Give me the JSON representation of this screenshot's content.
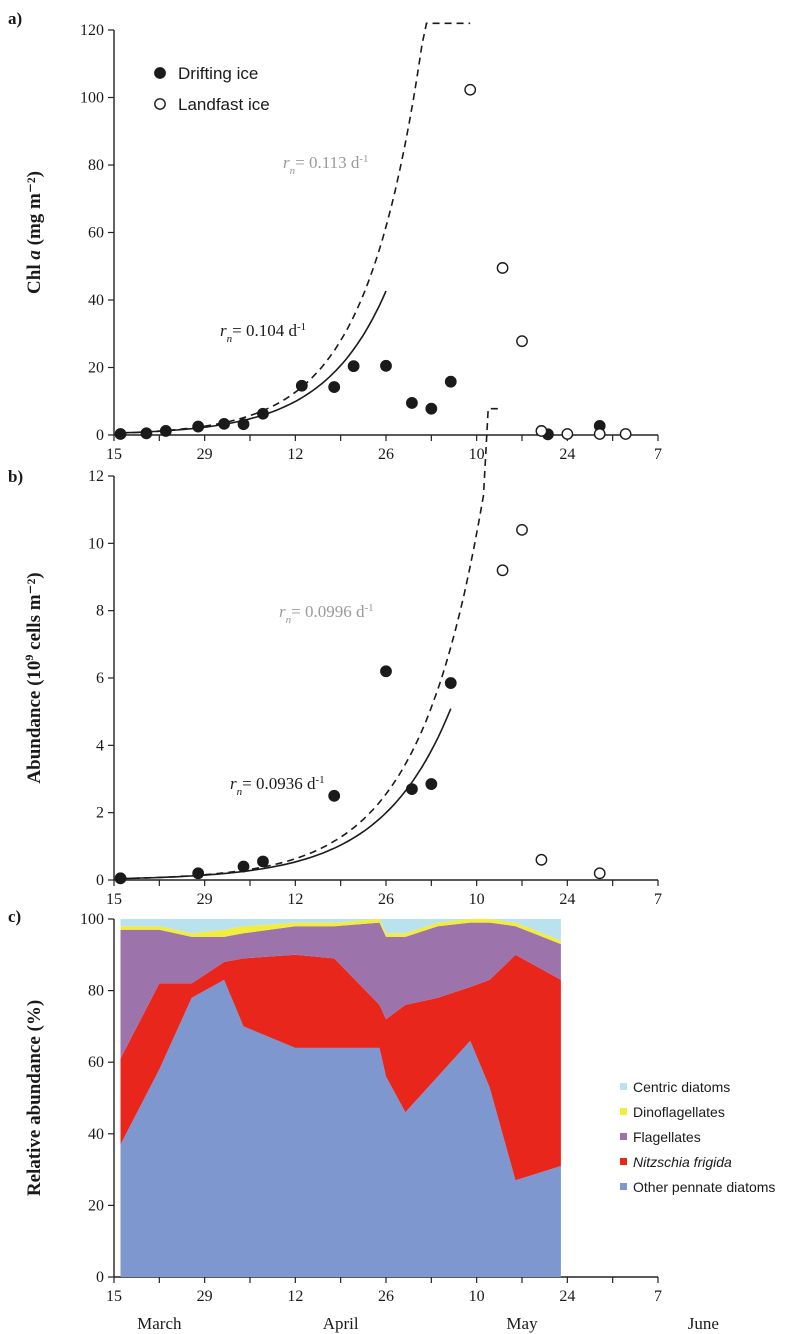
{
  "chart_data": [
    {
      "panel": "a)",
      "type": "scatter",
      "ylabel_main": "Chl ",
      "ylabel_ital": "a",
      "ylabel_unit": " (mg m⁻²)",
      "ylim": [
        0,
        120
      ],
      "yticks": [
        "0",
        "20",
        "40",
        "60",
        "80",
        "100",
        "120"
      ],
      "xlim": [
        "2008-03-15",
        "2008-06-07"
      ],
      "series": [
        {
          "name": "Drifting ice",
          "marker": "filled-circle",
          "points": [
            {
              "x": "2008-03-16",
              "y": 0.3
            },
            {
              "x": "2008-03-20",
              "y": 0.5
            },
            {
              "x": "2008-03-23",
              "y": 1.2
            },
            {
              "x": "2008-03-28",
              "y": 2.5
            },
            {
              "x": "2008-04-01",
              "y": 3.3
            },
            {
              "x": "2008-04-04",
              "y": 3.2
            },
            {
              "x": "2008-04-07",
              "y": 6.3
            },
            {
              "x": "2008-04-13",
              "y": 14.6
            },
            {
              "x": "2008-04-18",
              "y": 14.2
            },
            {
              "x": "2008-04-21",
              "y": 20.4
            },
            {
              "x": "2008-04-26",
              "y": 20.5
            },
            {
              "x": "2008-04-30",
              "y": 9.5
            },
            {
              "x": "2008-05-03",
              "y": 7.8
            },
            {
              "x": "2008-05-06",
              "y": 15.8
            },
            {
              "x": "2008-05-21",
              "y": 0.2
            },
            {
              "x": "2008-05-29",
              "y": 2.7
            }
          ]
        },
        {
          "name": "Landfast ice",
          "marker": "open-circle",
          "points": [
            {
              "x": "2008-05-09",
              "y": 102.3
            },
            {
              "x": "2008-05-14",
              "y": 49.5
            },
            {
              "x": "2008-05-17",
              "y": 27.8
            },
            {
              "x": "2008-05-20",
              "y": 1.2
            },
            {
              "x": "2008-05-24",
              "y": 0.3
            },
            {
              "x": "2008-05-29",
              "y": 0.3
            },
            {
              "x": "2008-06-02",
              "y": 0.3
            }
          ]
        }
      ],
      "fits": [
        {
          "label_pre": "r",
          "label_sub": "n",
          "label_post": "= 0.104 d",
          "label_sup": "-1",
          "style": "solid",
          "rate": 0.104,
          "y0": 0.6,
          "x0": "2008-03-16",
          "x1": "2008-04-26"
        },
        {
          "label_pre": "r",
          "label_sub": "n",
          "label_post": "= 0.113 d",
          "label_sup": "-1",
          "style": "dashed",
          "rate": 0.113,
          "y0": 0.6,
          "x0": "2008-03-16",
          "x1": "2008-05-09",
          "faint": true
        }
      ]
    },
    {
      "panel": "b)",
      "type": "scatter",
      "ylabel_main": "Abundance (10",
      "ylabel_sup": "9",
      "ylabel_unit": " cells  m⁻²)",
      "ylim": [
        0,
        12
      ],
      "yticks": [
        "0",
        "2",
        "4",
        "6",
        "8",
        "10",
        "12"
      ],
      "xlim": [
        "2008-03-15",
        "2008-06-07"
      ],
      "series": [
        {
          "name": "Drifting ice",
          "marker": "filled-circle",
          "points": [
            {
              "x": "2008-03-16",
              "y": 0.05
            },
            {
              "x": "2008-03-28",
              "y": 0.2
            },
            {
              "x": "2008-04-04",
              "y": 0.4
            },
            {
              "x": "2008-04-07",
              "y": 0.55
            },
            {
              "x": "2008-04-18",
              "y": 2.5
            },
            {
              "x": "2008-04-26",
              "y": 6.2
            },
            {
              "x": "2008-04-30",
              "y": 2.7
            },
            {
              "x": "2008-05-03",
              "y": 2.85
            },
            {
              "x": "2008-05-06",
              "y": 5.85
            }
          ]
        },
        {
          "name": "Landfast ice",
          "marker": "open-circle",
          "points": [
            {
              "x": "2008-05-14",
              "y": 9.2
            },
            {
              "x": "2008-05-17",
              "y": 10.4
            },
            {
              "x": "2008-05-20",
              "y": 0.6
            },
            {
              "x": "2008-05-29",
              "y": 0.2
            }
          ]
        }
      ],
      "fits": [
        {
          "label_pre": "r",
          "label_sub": "n",
          "label_post": "= 0.0936 d",
          "label_sup": "-1",
          "style": "solid",
          "rate": 0.0936,
          "y0": 0.043,
          "x0": "2008-03-16",
          "x1": "2008-05-06"
        },
        {
          "label_pre": "r",
          "label_sub": "n",
          "label_post": "= 0.0996 d",
          "label_sup": "-1",
          "style": "dashed",
          "rate": 0.0996,
          "y0": 0.043,
          "x0": "2008-03-16",
          "x1": "2008-05-14",
          "faint": true
        }
      ]
    },
    {
      "panel": "c)",
      "type": "area",
      "ylabel_main": "Relative abundance (%)",
      "ylim": [
        0,
        100
      ],
      "yticks": [
        "0",
        "20",
        "40",
        "60",
        "80",
        "100"
      ],
      "xlim": [
        "2008-03-15",
        "2008-06-07"
      ],
      "x": [
        "2008-03-16",
        "2008-03-22",
        "2008-03-27",
        "2008-04-01",
        "2008-04-04",
        "2008-04-12",
        "2008-04-18",
        "2008-04-25",
        "2008-04-26",
        "2008-04-29",
        "2008-05-04",
        "2008-05-09",
        "2008-05-12",
        "2008-05-16",
        "2008-05-23"
      ],
      "series": [
        {
          "name": "Other pennate diatoms",
          "color": "#7e97cf",
          "values": [
            37,
            58,
            78,
            83,
            70,
            64,
            64,
            64,
            56,
            46,
            56,
            66,
            53,
            27,
            31
          ]
        },
        {
          "name": "Nitzschia frigida",
          "italic": true,
          "color": "#e8261c",
          "values": [
            24,
            24,
            4,
            5,
            19,
            26,
            25,
            12,
            16,
            30,
            22,
            15,
            30,
            63,
            52
          ]
        },
        {
          "name": "Flagellates",
          "color": "#9c74ab",
          "values": [
            36,
            15,
            13,
            7,
            7,
            8,
            9,
            23,
            23,
            19,
            20,
            18,
            16,
            8,
            10
          ]
        },
        {
          "name": "Dinoflagellates",
          "color": "#f2ec3c",
          "values": [
            1,
            1,
            1,
            2,
            2,
            1,
            1,
            1,
            1,
            1,
            1,
            1,
            1,
            1,
            1
          ]
        },
        {
          "name": "Centric diatoms",
          "color": "#b9e2ee",
          "values": [
            2,
            2,
            4,
            3,
            2,
            1,
            1,
            0,
            4,
            4,
            1,
            0,
            0,
            1,
            6
          ]
        }
      ]
    }
  ],
  "xaxis": {
    "tick_dates": [
      "2008-03-15",
      "2008-03-22",
      "2008-03-29",
      "2008-04-05",
      "2008-04-12",
      "2008-04-19",
      "2008-04-26",
      "2008-05-03",
      "2008-05-10",
      "2008-05-17",
      "2008-05-24",
      "2008-05-31",
      "2008-06-07"
    ],
    "tick_labels": [
      {
        "date": "2008-03-15",
        "text": "15"
      },
      {
        "date": "2008-03-29",
        "text": "29"
      },
      {
        "date": "2008-04-12",
        "text": "12"
      },
      {
        "date": "2008-04-26",
        "text": "26"
      },
      {
        "date": "2008-05-10",
        "text": "10"
      },
      {
        "date": "2008-05-24",
        "text": "24"
      },
      {
        "date": "2008-06-07",
        "text": "7"
      }
    ],
    "months": [
      {
        "date": "2008-03-22",
        "text": "March"
      },
      {
        "date": "2008-04-19",
        "text": "April"
      },
      {
        "date": "2008-05-17",
        "text": "May"
      },
      {
        "date": "2008-06-14",
        "text": "June"
      }
    ]
  }
}
